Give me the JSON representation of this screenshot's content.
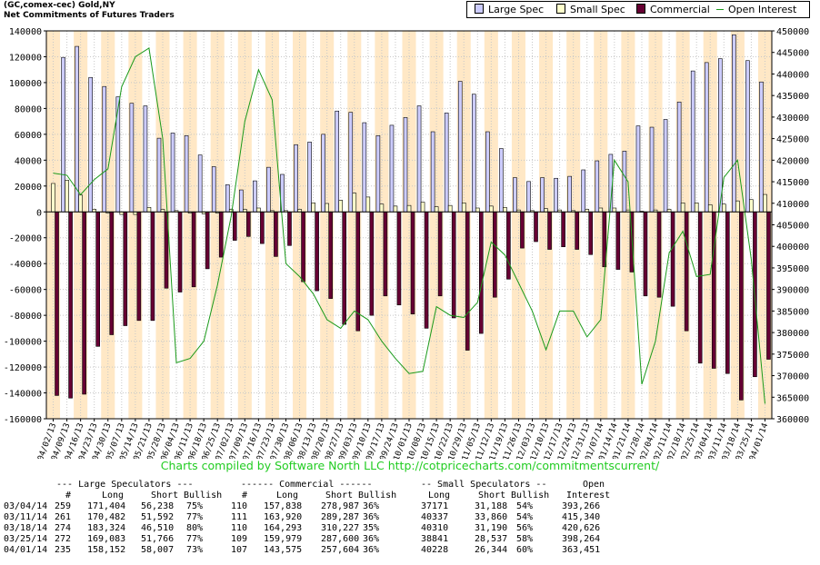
{
  "header": {
    "title": "(GC,comex-cec) Gold,NY",
    "subtitle": "Net Commitments of Futures Traders"
  },
  "legend": {
    "large_spec": "Large Spec",
    "small_spec": "Small Spec",
    "commercial": "Commercial",
    "open_interest": "Open Interest"
  },
  "colors": {
    "large_spec": "#ccccff",
    "small_spec": "#ffffcc",
    "commercial": "#660033",
    "open_interest": "#1a9a1a",
    "band": "#ffe8c6",
    "credit": "#22cc22"
  },
  "credit": "Charts compiled by Software North LLC  http://cotpricecharts.com/commitmentscurrent/",
  "chart_data": {
    "type": "bar",
    "categories": [
      "04/02/13",
      "04/09/13",
      "04/16/13",
      "04/23/13",
      "04/30/13",
      "05/07/13",
      "05/14/13",
      "05/21/13",
      "05/28/13",
      "06/04/13",
      "06/11/13",
      "06/18/13",
      "06/25/13",
      "07/02/13",
      "07/09/13",
      "07/16/13",
      "07/23/13",
      "07/30/13",
      "08/06/13",
      "08/13/13",
      "08/20/13",
      "08/27/13",
      "09/03/13",
      "09/10/13",
      "09/17/13",
      "09/24/13",
      "10/01/13",
      "10/08/13",
      "10/15/13",
      "10/22/13",
      "10/29/13",
      "11/05/13",
      "11/12/13",
      "11/19/13",
      "11/26/13",
      "12/03/13",
      "12/10/13",
      "12/17/13",
      "12/24/13",
      "12/31/13",
      "01/07/14",
      "01/14/14",
      "01/21/14",
      "01/28/14",
      "02/04/14",
      "02/11/14",
      "02/18/14",
      "02/25/14",
      "03/04/14",
      "03/11/14",
      "03/18/14",
      "03/25/14",
      "04/01/14"
    ],
    "x_tick_labels": [
      "04/02/13",
      "04/09/13",
      "04/16/13",
      "04/23/13",
      "04/30/13",
      "05/07/13",
      "05/14/13",
      "05/21/13",
      "05/28/13",
      "06/04/13",
      "06/11/13",
      "06/18/13",
      "06/25/13",
      "07/02/13",
      "07/09/13",
      "07/16/13",
      "07/23/13",
      "07/30/13",
      "08/06/13",
      "08/13/13",
      "08/20/13",
      "08/27/13",
      "09/03/13",
      "09/10/13",
      "09/17/13",
      "09/24/13",
      "10/01/13",
      "10/08/13",
      "10/15/13",
      "10/22/13",
      "10/29/13",
      "11/05/13",
      "11/12/13",
      "11/19/13",
      "11/26/13",
      "12/03/13",
      "12/10/13",
      "12/17/13",
      "12/24/13",
      "12/31/13",
      "01/07/14",
      "01/14/14",
      "01/21/14",
      "01/28/14",
      "02/04/14",
      "02/11/14",
      "02/18/14",
      "02/25/14",
      "03/04/14",
      "03/11/14",
      "03/18/14",
      "03/25/14",
      "04/01/14"
    ],
    "series": [
      {
        "name": "Large Spec",
        "axis": "left",
        "values": [
          0,
          119500,
          128000,
          104000,
          97000,
          89000,
          84000,
          82000,
          57000,
          61000,
          59000,
          44000,
          35000,
          21000,
          17000,
          24000,
          34500,
          29000,
          52000,
          54000,
          60000,
          78000,
          77000,
          69000,
          59000,
          67000,
          73000,
          82000,
          62000,
          76500,
          101000,
          91000,
          62000,
          49000,
          26500,
          23500,
          26500,
          26000,
          27500,
          32500,
          39500,
          44500,
          47000,
          66500,
          65500,
          71500,
          85000,
          109000,
          115500,
          118500,
          137000,
          117000,
          100500
        ]
      },
      {
        "name": "Small Spec",
        "axis": "left",
        "values": [
          22000,
          24500,
          13000,
          2000,
          -1000,
          -2000,
          -2000,
          3500,
          2000,
          1000,
          -1000,
          -1500,
          -1000,
          2000,
          2000,
          3000,
          1000,
          1000,
          2000,
          7000,
          6500,
          9000,
          14500,
          11500,
          6000,
          4500,
          5000,
          7500,
          4000,
          5000,
          7000,
          3000,
          4500,
          3500,
          1500,
          1000,
          2500,
          1500,
          1000,
          2000,
          3000,
          3000,
          1500,
          500,
          1500,
          2000,
          7000,
          7000,
          5500,
          6000,
          8500,
          9500,
          13500
        ]
      },
      {
        "name": "Commercial",
        "axis": "left",
        "values": [
          -142000,
          -144000,
          -141000,
          -104000,
          -95000,
          -88000,
          -84000,
          -84000,
          -59000,
          -62000,
          -58000,
          -44000,
          -35000,
          -22000,
          -19000,
          -24500,
          -34500,
          -26000,
          -54000,
          -61000,
          -67000,
          -87000,
          -92000,
          -80000,
          -65000,
          -72000,
          -79000,
          -90000,
          -65000,
          -82000,
          -107000,
          -94000,
          -66000,
          -52000,
          -28000,
          -23000,
          -29000,
          -27000,
          -29000,
          -33000,
          -42500,
          -44500,
          -46500,
          -65000,
          -66000,
          -73000,
          -92000,
          -117000,
          -121000,
          -125000,
          -145500,
          -127500,
          -114000
        ]
      },
      {
        "name": "Open Interest",
        "axis": "right",
        "type": "line",
        "values": [
          417000,
          416500,
          412000,
          415500,
          418000,
          437000,
          444000,
          446000,
          425000,
          373000,
          374000,
          378000,
          391000,
          407000,
          429000,
          441000,
          434000,
          396000,
          393000,
          389000,
          383000,
          381000,
          385000,
          383000,
          378000,
          374000,
          370500,
          371000,
          386000,
          384000,
          383500,
          387000,
          401000,
          398000,
          391500,
          385000,
          376000,
          385000,
          385000,
          379000,
          383000,
          420000,
          415000,
          368000,
          378000,
          398500,
          403500,
          393000,
          393500,
          416000,
          420000,
          397000,
          363500
        ]
      }
    ],
    "ylim": [
      -160000,
      140000
    ],
    "y2lim": [
      360000,
      450000
    ],
    "yticks": [
      140000,
      120000,
      100000,
      80000,
      60000,
      40000,
      20000,
      0,
      -20000,
      -40000,
      -60000,
      -80000,
      -100000,
      -120000,
      -140000,
      -160000
    ],
    "y2ticks": [
      450000,
      445000,
      440000,
      435000,
      430000,
      425000,
      420000,
      415000,
      410000,
      405000,
      400000,
      395000,
      390000,
      385000,
      380000,
      375000,
      370000,
      365000,
      360000
    ],
    "grid": true,
    "legend_position": "top-right"
  },
  "table": {
    "group_headers": {
      "large": "--- Large Speculators ---",
      "commercial": "------ Commercial ------",
      "small": "-- Small Speculators --",
      "open": "Open"
    },
    "col_headers": {
      "large_count": "#",
      "large_long": "Long",
      "large_short": "Short",
      "large_bullish": "Bullish",
      "comm_count": "#",
      "comm_long": "Long",
      "comm_short": "Short",
      "comm_bullish": "Bullish",
      "small_long": "Long",
      "small_short": "Short",
      "small_bullish": "Bullish",
      "open_interest": "Interest"
    },
    "rows": [
      {
        "date": "03/04/14",
        "lc": "259",
        "ll": "171,404",
        "ls": "56,238",
        "lb": "75%",
        "cc": "110",
        "cl": "157,838",
        "cs": "278,987",
        "cb": "36%",
        "sl": "37171",
        "ss": "31,188",
        "sb": "54%",
        "oi": "393,266"
      },
      {
        "date": "03/11/14",
        "lc": "261",
        "ll": "170,482",
        "ls": "51,592",
        "lb": "77%",
        "cc": "111",
        "cl": "163,920",
        "cs": "289,287",
        "cb": "36%",
        "sl": "40337",
        "ss": "33,860",
        "sb": "54%",
        "oi": "415,340"
      },
      {
        "date": "03/18/14",
        "lc": "274",
        "ll": "183,324",
        "ls": "46,510",
        "lb": "80%",
        "cc": "110",
        "cl": "164,293",
        "cs": "310,227",
        "cb": "35%",
        "sl": "40310",
        "ss": "31,190",
        "sb": "56%",
        "oi": "420,626"
      },
      {
        "date": "03/25/14",
        "lc": "272",
        "ll": "169,083",
        "ls": "51,766",
        "lb": "77%",
        "cc": "109",
        "cl": "159,979",
        "cs": "287,600",
        "cb": "36%",
        "sl": "38841",
        "ss": "28,537",
        "sb": "58%",
        "oi": "398,264"
      },
      {
        "date": "04/01/14",
        "lc": "235",
        "ll": "158,152",
        "ls": "58,007",
        "lb": "73%",
        "cc": "107",
        "cl": "143,575",
        "cs": "257,604",
        "cb": "36%",
        "sl": "40228",
        "ss": "26,344",
        "sb": "60%",
        "oi": "363,451"
      }
    ]
  }
}
